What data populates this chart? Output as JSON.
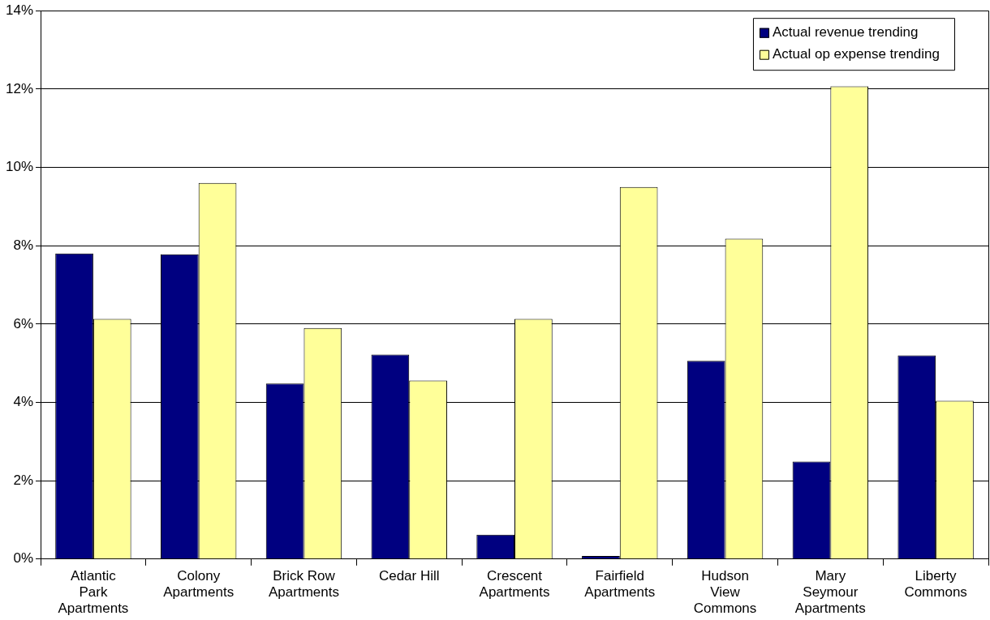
{
  "chart_data": {
    "type": "bar",
    "categories": [
      "Atlantic Park Apartments",
      "Colony Apartments",
      "Brick Row Apartments",
      "Cedar Hill",
      "Crescent Apartments",
      "Fairfield Apartments",
      "Hudson View Commons",
      "Mary Seymour Apartments",
      "Liberty Commons"
    ],
    "series": [
      {
        "name": "Actual revenue trending",
        "color": "#000080",
        "values": [
          7.8,
          7.78,
          4.48,
          5.22,
          0.62,
          0.08,
          5.06,
          2.49,
          5.2
        ]
      },
      {
        "name": "Actual op expense trending",
        "color": "#ffff99",
        "values": [
          6.13,
          9.6,
          5.9,
          4.56,
          6.13,
          9.5,
          8.18,
          12.07,
          4.04
        ]
      }
    ],
    "ylim": [
      0,
      14
    ],
    "yticks": [
      {
        "value": 0,
        "label": "0%"
      },
      {
        "value": 2,
        "label": "2%"
      },
      {
        "value": 4,
        "label": "4%"
      },
      {
        "value": 6,
        "label": "6%"
      },
      {
        "value": 8,
        "label": "8%"
      },
      {
        "value": 10,
        "label": "10%"
      },
      {
        "value": 12,
        "label": "12%"
      },
      {
        "value": 14,
        "label": "14%"
      }
    ],
    "grid": "y",
    "legend": "top right"
  }
}
